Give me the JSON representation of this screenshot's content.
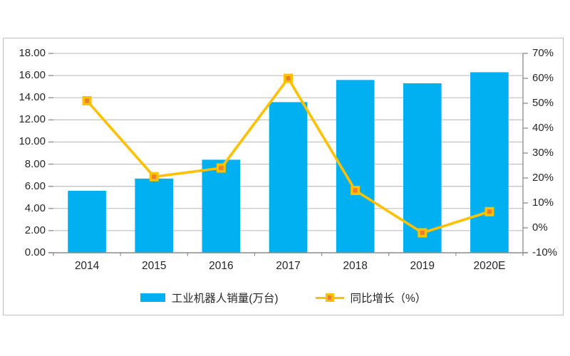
{
  "chart_data": {
    "type": "combo-bar-line",
    "title": "",
    "categories": [
      "2014",
      "2015",
      "2016",
      "2017",
      "2018",
      "2019",
      "2020E"
    ],
    "series": [
      {
        "name": "工业机器人销量(万台)",
        "chart_type": "bar",
        "axis": "left",
        "color": "#00B0F0",
        "values": [
          5.6,
          6.7,
          8.4,
          13.6,
          15.6,
          15.3,
          16.3
        ]
      },
      {
        "name": "同比增长（%）",
        "chart_type": "line",
        "axis": "right",
        "color": "#FFC000",
        "marker_fill": "#ED7D31",
        "values": [
          51,
          20.5,
          24,
          60,
          15,
          -2,
          6.5
        ]
      }
    ],
    "left_axis": {
      "min": 0,
      "max": 18,
      "step": 2,
      "tick_labels": [
        "0.00",
        "2.00",
        "4.00",
        "6.00",
        "8.00",
        "10.00",
        "12.00",
        "14.00",
        "16.00",
        "18.00"
      ]
    },
    "right_axis": {
      "min": -10,
      "max": 70,
      "step": 10,
      "tick_labels": [
        "-10%",
        "0%",
        "10%",
        "20%",
        "30%",
        "40%",
        "50%",
        "60%",
        "70%"
      ]
    },
    "grid": true,
    "legend_position": "bottom"
  },
  "colors": {
    "bar": "#00B0F0",
    "line": "#FFC000",
    "marker_fill": "#ED7D31",
    "grid": "#c6c6c6",
    "axis": "#8c8c8c",
    "frame_border": "#bdbdbd",
    "text": "#262626",
    "background": "#ffffff"
  }
}
